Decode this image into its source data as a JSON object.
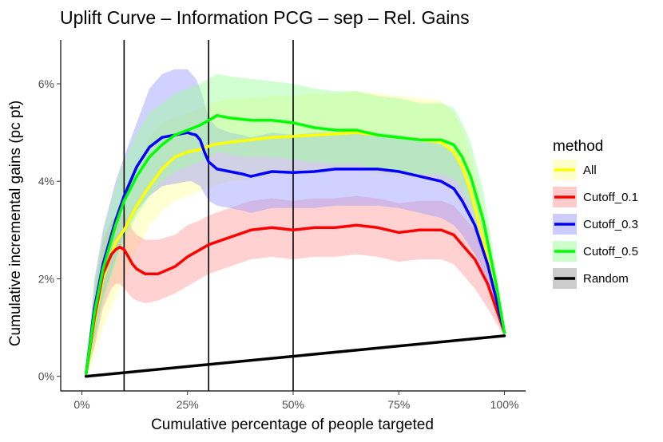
{
  "chart_data": {
    "type": "line",
    "title": "Uplift Curve –  Information PCG  –  sep  –  Rel. Gains",
    "xlabel": "Cumulative percentage of people targeted",
    "ylabel": "Cumulative incremental gains (pc pt)",
    "xlim": [
      -5,
      105
    ],
    "ylim": [
      -0.3,
      6.9
    ],
    "x_ticks": [
      0,
      25,
      50,
      75,
      100
    ],
    "x_tick_labels": [
      "0%",
      "25%",
      "50%",
      "75%",
      "100%"
    ],
    "y_ticks": [
      0,
      2,
      4,
      6
    ],
    "y_tick_labels": [
      "0%",
      "2%",
      "4%",
      "6%"
    ],
    "vlines": [
      10,
      30,
      50
    ],
    "legend": {
      "title": "method",
      "position": "right"
    },
    "series": [
      {
        "name": "All",
        "color": "#FFFF00",
        "band_color": "#FFFF99",
        "x": [
          1,
          3,
          5,
          8,
          10,
          13,
          16,
          19,
          22,
          25,
          28,
          31,
          35,
          40,
          45,
          50,
          55,
          60,
          65,
          70,
          75,
          80,
          85,
          88,
          90,
          92,
          95,
          98,
          100
        ],
        "y": [
          0.05,
          1.1,
          2.0,
          2.75,
          3.0,
          3.5,
          3.9,
          4.25,
          4.5,
          4.6,
          4.65,
          4.75,
          4.8,
          4.85,
          4.9,
          4.92,
          4.95,
          4.97,
          5.0,
          4.95,
          4.9,
          4.85,
          4.8,
          4.6,
          4.3,
          3.8,
          2.8,
          1.6,
          0.9
        ],
        "lower": [
          0.0,
          0.4,
          1.0,
          1.6,
          2.0,
          2.6,
          3.1,
          3.4,
          3.6,
          3.7,
          3.8,
          3.9,
          4.0,
          4.05,
          4.1,
          4.15,
          4.2,
          4.2,
          4.2,
          4.15,
          4.1,
          4.05,
          4.0,
          3.8,
          3.6,
          3.1,
          2.3,
          1.3,
          0.8
        ],
        "upper": [
          0.1,
          1.8,
          2.8,
          3.3,
          3.5,
          4.3,
          4.9,
          5.2,
          5.3,
          5.4,
          5.5,
          5.6,
          5.7,
          5.7,
          5.75,
          5.75,
          5.8,
          5.8,
          5.85,
          5.8,
          5.75,
          5.7,
          5.65,
          5.4,
          5.1,
          4.5,
          3.4,
          2.0,
          1.0
        ]
      },
      {
        "name": "Cutoff_0.1",
        "color": "#FF0000",
        "band_color": "#FF9999",
        "x": [
          1,
          3,
          5,
          7,
          8,
          9,
          10,
          11,
          12,
          13,
          15,
          18,
          22,
          25,
          28,
          30,
          35,
          40,
          45,
          50,
          55,
          60,
          65,
          70,
          75,
          80,
          85,
          88,
          90,
          93,
          96,
          98,
          100
        ],
        "y": [
          0.05,
          1.2,
          2.1,
          2.5,
          2.6,
          2.65,
          2.6,
          2.45,
          2.3,
          2.2,
          2.1,
          2.1,
          2.25,
          2.45,
          2.6,
          2.7,
          2.85,
          3.0,
          3.05,
          3.0,
          3.05,
          3.05,
          3.1,
          3.05,
          2.95,
          3.0,
          3.0,
          2.9,
          2.7,
          2.4,
          1.9,
          1.4,
          0.9
        ],
        "lower": [
          0.0,
          0.6,
          1.4,
          1.8,
          1.9,
          1.9,
          1.8,
          1.7,
          1.6,
          1.55,
          1.5,
          1.55,
          1.7,
          1.85,
          2.0,
          2.1,
          2.25,
          2.4,
          2.45,
          2.4,
          2.45,
          2.45,
          2.5,
          2.45,
          2.35,
          2.4,
          2.4,
          2.3,
          2.1,
          1.8,
          1.4,
          1.1,
          0.8
        ],
        "upper": [
          0.1,
          1.8,
          2.8,
          3.2,
          3.3,
          3.3,
          3.3,
          3.2,
          3.0,
          2.9,
          2.8,
          2.8,
          2.9,
          3.1,
          3.2,
          3.3,
          3.45,
          3.6,
          3.65,
          3.6,
          3.65,
          3.65,
          3.7,
          3.65,
          3.55,
          3.6,
          3.6,
          3.5,
          3.3,
          3.0,
          2.4,
          1.7,
          1.0
        ]
      },
      {
        "name": "Cutoff_0.3",
        "color": "#0000FF",
        "band_color": "#9999FF",
        "x": [
          1,
          3,
          5,
          8,
          10,
          13,
          16,
          19,
          22,
          25,
          26,
          27,
          28,
          29,
          30,
          32,
          35,
          38,
          40,
          45,
          50,
          55,
          60,
          65,
          70,
          75,
          80,
          85,
          88,
          90,
          93,
          96,
          98,
          100
        ],
        "y": [
          0.05,
          1.4,
          2.3,
          3.2,
          3.7,
          4.3,
          4.7,
          4.9,
          4.95,
          5.0,
          4.97,
          4.95,
          4.85,
          4.6,
          4.4,
          4.25,
          4.2,
          4.15,
          4.1,
          4.2,
          4.18,
          4.2,
          4.25,
          4.25,
          4.25,
          4.2,
          4.1,
          4.0,
          3.85,
          3.6,
          3.1,
          2.3,
          1.6,
          0.9
        ],
        "lower": [
          0.0,
          0.8,
          1.6,
          2.4,
          2.9,
          3.4,
          3.7,
          3.9,
          3.95,
          4.0,
          4.0,
          3.95,
          3.9,
          3.75,
          3.6,
          3.5,
          3.45,
          3.4,
          3.35,
          3.45,
          3.45,
          3.45,
          3.5,
          3.5,
          3.5,
          3.45,
          3.35,
          3.25,
          3.1,
          2.9,
          2.5,
          1.9,
          1.3,
          0.8
        ],
        "upper": [
          0.1,
          2.0,
          3.0,
          4.0,
          4.5,
          5.2,
          5.9,
          6.2,
          6.3,
          6.3,
          6.2,
          6.1,
          5.9,
          5.6,
          5.3,
          5.1,
          5.0,
          4.95,
          4.9,
          5.0,
          4.95,
          5.0,
          5.0,
          5.0,
          5.0,
          4.95,
          4.85,
          4.75,
          4.6,
          4.3,
          3.7,
          2.8,
          1.9,
          1.0
        ]
      },
      {
        "name": "Cutoff_0.5",
        "color": "#00FF00",
        "band_color": "#99FF99",
        "x": [
          1,
          3,
          5,
          8,
          10,
          13,
          16,
          19,
          22,
          25,
          28,
          30,
          32,
          35,
          40,
          45,
          50,
          55,
          60,
          65,
          70,
          75,
          80,
          85,
          88,
          90,
          92,
          95,
          98,
          100
        ],
        "y": [
          0.05,
          1.3,
          2.2,
          3.1,
          3.6,
          4.1,
          4.5,
          4.75,
          4.95,
          5.05,
          5.15,
          5.25,
          5.35,
          5.3,
          5.25,
          5.25,
          5.2,
          5.1,
          5.05,
          5.05,
          4.95,
          4.9,
          4.85,
          4.85,
          4.75,
          4.5,
          4.1,
          3.2,
          1.9,
          0.9
        ],
        "lower": [
          0.0,
          0.7,
          1.5,
          2.3,
          2.8,
          3.3,
          3.7,
          4.0,
          4.2,
          4.3,
          4.4,
          4.5,
          4.6,
          4.55,
          4.5,
          4.5,
          4.45,
          4.4,
          4.35,
          4.35,
          4.25,
          4.2,
          4.15,
          4.15,
          4.05,
          3.85,
          3.5,
          2.7,
          1.6,
          0.8
        ],
        "upper": [
          0.1,
          1.9,
          2.9,
          3.9,
          4.4,
          5.0,
          5.4,
          5.6,
          5.8,
          5.9,
          6.0,
          6.1,
          6.2,
          6.15,
          6.1,
          6.05,
          6.0,
          5.9,
          5.85,
          5.85,
          5.75,
          5.7,
          5.6,
          5.6,
          5.5,
          5.2,
          4.8,
          3.8,
          2.2,
          1.0
        ]
      },
      {
        "name": "Random",
        "color": "#000000",
        "band_color": "#999999",
        "x": [
          1,
          100
        ],
        "y": [
          0.0,
          0.83
        ]
      }
    ]
  }
}
